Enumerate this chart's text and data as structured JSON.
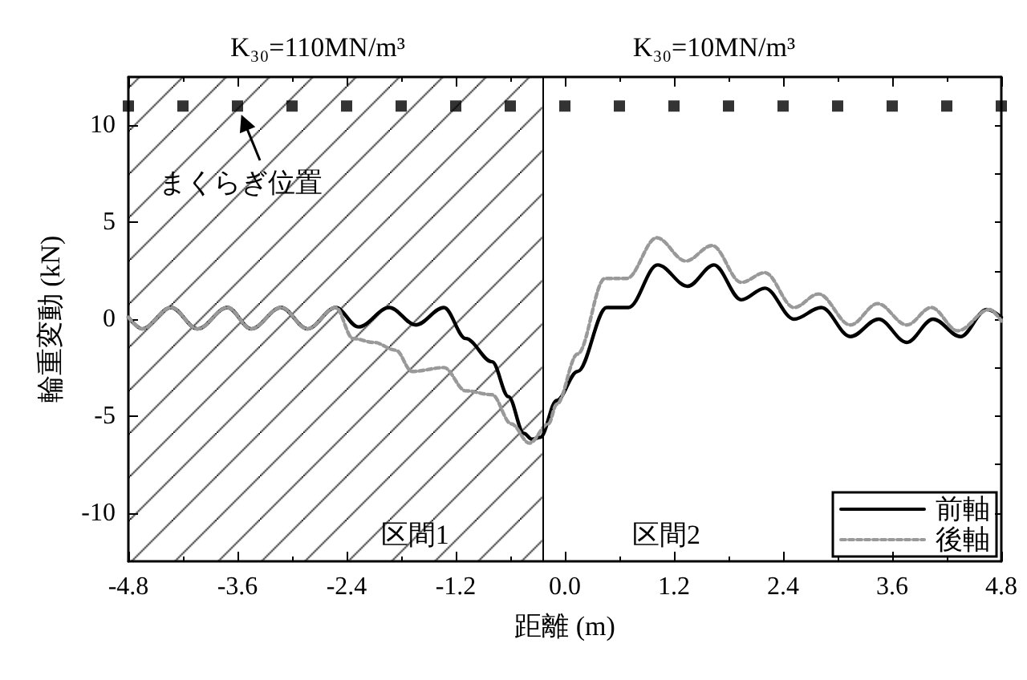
{
  "chart_data": {
    "type": "line",
    "xlabel": "距離 (m)",
    "ylabel": "輪重変動 (kN)",
    "xlim": [
      -4.8,
      4.8
    ],
    "xticks": [
      -4.8,
      -3.6,
      -2.4,
      -1.2,
      {
        "value": 0,
        "label": "0.0"
      },
      1.2,
      2.4,
      3.6,
      4.8
    ],
    "ylim": [
      -12.5,
      12.5
    ],
    "yticks": [
      -10,
      -5,
      0,
      5,
      10
    ],
    "grid": false,
    "legend": "bottom right",
    "marker": "none",
    "annotations": [
      "K₃₀=110MN/m³",
      "K₃₀=10MN/m³",
      "区間2",
      {
        "text": "まくらぎ位置",
        "x": -3.6,
        "y": 11
      }
    ],
    "bands": [
      {
        "axis": "x",
        "from": -4.8,
        "to": -0.25,
        "label": "区間1",
        "color": "#000000"
      }
    ],
    "ref_lines": [
      {
        "axis": "x",
        "value": -0.25,
        "color": "#000000"
      }
    ],
    "series": [
      {
        "name": "前軸",
        "color": "#000000",
        "line_style": "solid",
        "x": [
          -4.8,
          -4.65,
          -4.33,
          -4.04,
          -3.71,
          -3.45,
          -3.12,
          -2.83,
          -2.52,
          -2.27,
          -1.93,
          -1.64,
          -1.33,
          -1.09,
          -0.8,
          -0.62,
          -0.45,
          -0.36,
          -0.27,
          -0.09,
          0.14,
          0.46,
          0.7,
          1.02,
          1.35,
          1.64,
          1.94,
          2.2,
          2.52,
          2.82,
          3.14,
          3.45,
          3.76,
          4.05,
          4.35,
          4.64,
          4.8
        ],
        "values": [
          0.1,
          -0.5,
          0.6,
          -0.5,
          0.6,
          -0.5,
          0.6,
          -0.5,
          0.6,
          -0.4,
          0.6,
          -0.3,
          0.6,
          -1.0,
          -2.2,
          -4,
          -5.9,
          -6.2,
          -6.1,
          -4.2,
          -2.7,
          0.6,
          0.6,
          2.8,
          1.7,
          2.8,
          1,
          1.6,
          0,
          0.6,
          -0.9,
          0,
          -1.2,
          0,
          -0.9,
          0.5,
          0.1
        ]
      },
      {
        "name": "後軸",
        "color": "#999999",
        "line_style": "dotted",
        "x": [
          -4.8,
          -4.65,
          -4.33,
          -4.04,
          -3.71,
          -3.45,
          -3.12,
          -2.83,
          -2.52,
          -2.33,
          -2.1,
          -1.86,
          -1.68,
          -1.33,
          -1.09,
          -0.8,
          -0.59,
          -0.39,
          -0.18,
          -0.09,
          0.14,
          0.44,
          0.68,
          1.01,
          1.33,
          1.62,
          1.94,
          2.2,
          2.52,
          2.79,
          3.14,
          3.44,
          3.76,
          4.03,
          4.32,
          4.67,
          4.8
        ],
        "values": [
          0.1,
          -0.5,
          0.6,
          -0.5,
          0.6,
          -0.5,
          0.6,
          -0.5,
          0.6,
          -1.0,
          -1.2,
          -1.6,
          -2.7,
          -2.5,
          -3.7,
          -3.9,
          -5.4,
          -6.4,
          -5.4,
          -4.4,
          -1.8,
          2.1,
          2.1,
          4.2,
          3,
          3.8,
          1.9,
          2.4,
          0.6,
          1.3,
          -0.3,
          0.8,
          -0.3,
          0.6,
          -0.6,
          0.5,
          -0.1
        ]
      },
      {
        "type": "scatter",
        "color": "#000000",
        "marker": "square",
        "x": [
          -4.8,
          -4.2,
          -3.6,
          -3,
          -2.4,
          -1.8,
          -1.2,
          -0.6,
          0,
          0.6,
          1.2,
          1.8,
          2.4,
          3,
          3.6,
          4.2,
          4.8
        ],
        "values": [
          11,
          11,
          11,
          11,
          11,
          11,
          11,
          11,
          11,
          11,
          11,
          11,
          11,
          11,
          11,
          11,
          11
        ]
      }
    ]
  }
}
